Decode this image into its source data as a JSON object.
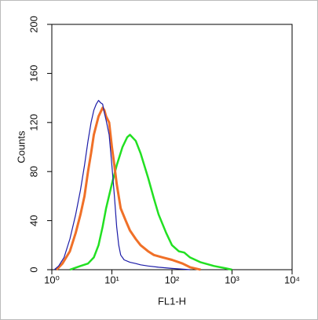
{
  "chart_data": {
    "type": "line",
    "xlabel": "FL1-H",
    "ylabel": "Counts",
    "xscale": "log",
    "xlim": [
      1,
      10000
    ],
    "ylim": [
      0,
      200
    ],
    "xticks": [
      {
        "value": 1,
        "label": "10⁰"
      },
      {
        "value": 10,
        "label": "10¹"
      },
      {
        "value": 100,
        "label": "10²"
      },
      {
        "value": 1000,
        "label": "10³"
      },
      {
        "value": 10000,
        "label": "10⁴"
      }
    ],
    "yticks": [
      0,
      40,
      80,
      120,
      160,
      200
    ],
    "series": [
      {
        "color": "#1c1ca8",
        "width": 1.2,
        "x": [
          1.1,
          1.3,
          1.6,
          2,
          2.5,
          3,
          3.5,
          4,
          4.5,
          5,
          5.5,
          6,
          6.5,
          7,
          7.5,
          8,
          9,
          10,
          11,
          12,
          13,
          14,
          16,
          20,
          25,
          30,
          40,
          60,
          100,
          200
        ],
        "values": [
          0,
          3,
          10,
          25,
          45,
          65,
          85,
          105,
          120,
          130,
          135,
          138,
          136,
          135,
          128,
          122,
          110,
          85,
          60,
          35,
          20,
          12,
          8,
          6,
          5,
          4,
          3,
          2,
          1,
          0
        ]
      },
      {
        "color": "#f07028",
        "width": 3,
        "x": [
          1.2,
          1.5,
          2,
          2.5,
          3,
          3.5,
          4,
          4.5,
          5,
          6,
          7,
          7.5,
          8,
          9,
          10,
          11,
          12,
          14,
          17,
          20,
          25,
          30,
          40,
          50,
          70,
          100,
          150,
          200,
          300
        ],
        "values": [
          0,
          5,
          15,
          30,
          45,
          60,
          80,
          95,
          110,
          125,
          132,
          130,
          125,
          120,
          100,
          85,
          70,
          50,
          40,
          32,
          25,
          20,
          15,
          12,
          10,
          8,
          5,
          2,
          0
        ]
      },
      {
        "color": "#22e022",
        "width": 2.5,
        "x": [
          2,
          3,
          4,
          5,
          6,
          7,
          8,
          10,
          12,
          15,
          18,
          20,
          25,
          30,
          40,
          50,
          60,
          80,
          100,
          130,
          160,
          200,
          300,
          500,
          800,
          1000
        ],
        "values": [
          0,
          3,
          5,
          10,
          20,
          35,
          50,
          70,
          85,
          100,
          108,
          110,
          105,
          95,
          75,
          58,
          45,
          30,
          20,
          15,
          14,
          10,
          6,
          3,
          1,
          0
        ]
      }
    ]
  }
}
